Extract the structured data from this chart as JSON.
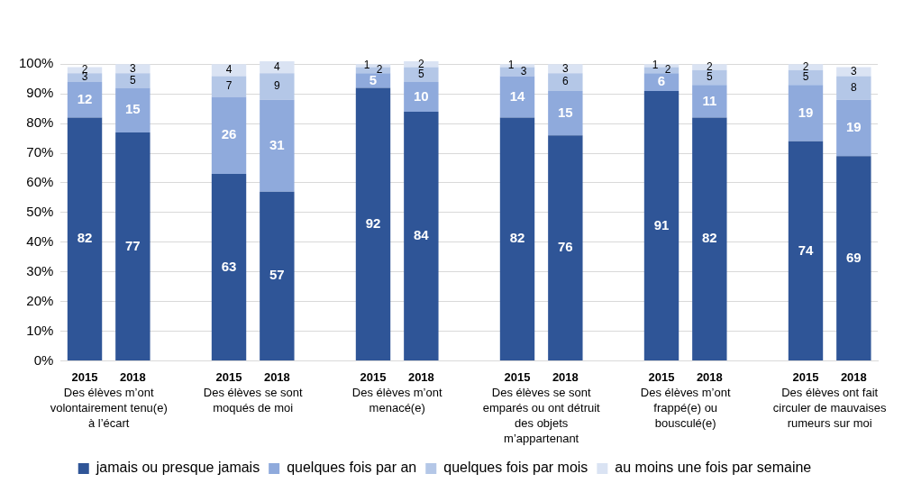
{
  "chart_data": {
    "type": "bar",
    "stacked": true,
    "categories": [
      "2015",
      "2018",
      null,
      "2015",
      "2018",
      null,
      "2015",
      "2018",
      null,
      "2015",
      "2018",
      null,
      "2015",
      "2018",
      null,
      "2015",
      "2018"
    ],
    "series": [
      {
        "name": "jamais ou presque jamais",
        "color": "#2f5597",
        "values": [
          82,
          77,
          null,
          63,
          57,
          null,
          92,
          84,
          null,
          82,
          76,
          null,
          91,
          82,
          null,
          74,
          69
        ]
      },
      {
        "name": "quelques fois par an",
        "color": "#8faadc",
        "values": [
          12,
          15,
          null,
          26,
          31,
          null,
          5,
          10,
          null,
          14,
          15,
          null,
          6,
          11,
          null,
          19,
          19
        ]
      },
      {
        "name": "quelques fois par mois",
        "color": "#b4c7e7",
        "values": [
          3,
          5,
          null,
          7,
          9,
          null,
          2,
          5,
          null,
          3,
          6,
          null,
          2,
          5,
          null,
          5,
          8
        ]
      },
      {
        "name": "au moins une fois par semaine",
        "color": "#dae3f3",
        "values": [
          2,
          3,
          null,
          4,
          4,
          null,
          1,
          2,
          null,
          1,
          3,
          null,
          1,
          2,
          null,
          2,
          3
        ]
      }
    ],
    "ylim": [
      0,
      101
    ],
    "yticks": [
      {
        "value": 0,
        "label": "0%"
      },
      {
        "value": 10,
        "label": "10%"
      },
      {
        "value": 20,
        "label": "20%"
      },
      {
        "value": 30,
        "label": "30%"
      },
      {
        "value": 40,
        "label": "40%"
      },
      {
        "value": 50,
        "label": "50%"
      },
      {
        "value": 60,
        "label": "60%"
      },
      {
        "value": 70,
        "label": "70%"
      },
      {
        "value": 80,
        "label": "80%"
      },
      {
        "value": 90,
        "label": "90%"
      },
      {
        "value": 100,
        "label": "100%"
      }
    ],
    "grid": "y",
    "legend": "bottom",
    "data_labels": true,
    "annotations": [
      "Des élèves m’ont volontairement tenu(e) à l’écart",
      "Des élèves se sont moqués de moi",
      "Des élèves m’ont menacé(e)",
      "Des élèves se sont emparés ou ont détruit des objets m’appartenant",
      "Des élèves m’ont frappé(e) ou bousculé(e)",
      "Des élèves ont fait circuler de mauvaises rumeurs sur moi"
    ]
  }
}
